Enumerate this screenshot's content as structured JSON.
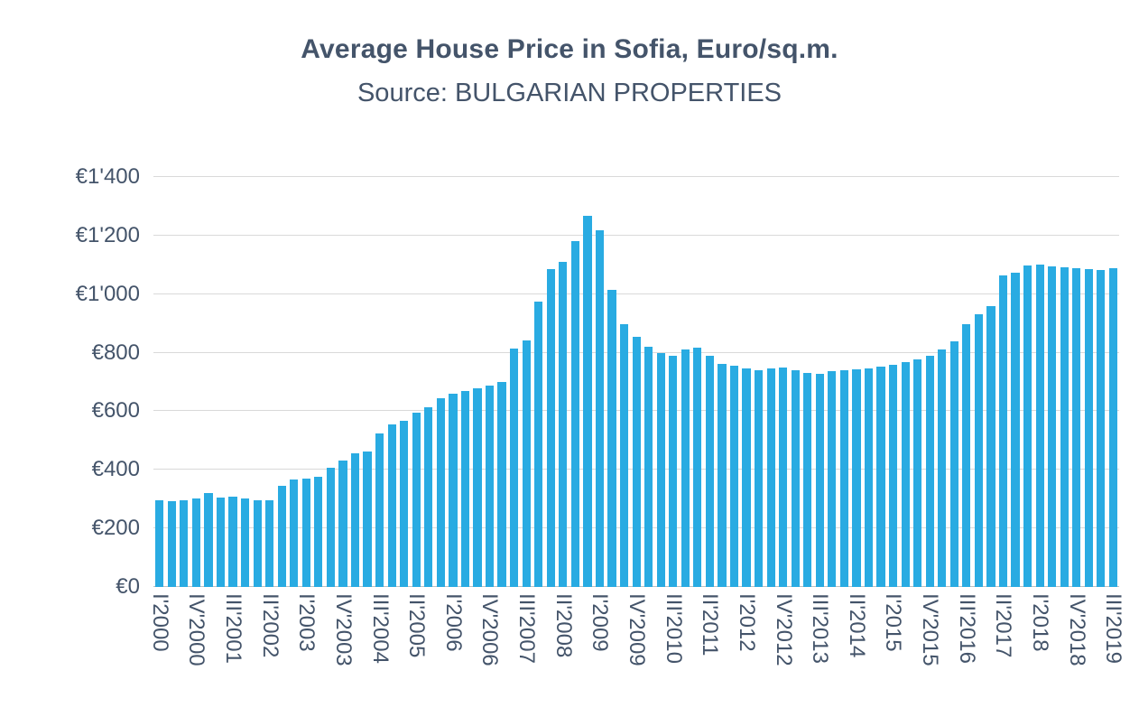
{
  "page": {
    "background": "#ffffff"
  },
  "chart_data": {
    "type": "bar",
    "title": "Average House Price in Sofia, Euro/sq.m.",
    "subtitle": "Source: BULGARIAN PROPERTIES",
    "xlabel": "",
    "ylabel": "",
    "ylim": [
      0,
      1400
    ],
    "ytick_step": 200,
    "y_tick_labels": [
      "€0",
      "€200",
      "€400",
      "€600",
      "€800",
      "€1'000",
      "€1'200",
      "€1'400"
    ],
    "x_label_every": 3,
    "grid": true,
    "legend": "none",
    "colors": {
      "bar": "#29abe2",
      "title": "#44546a",
      "axis_text": "#44546a",
      "gridline": "#d9d9d9",
      "axis_line": "#bfbfbf"
    },
    "categories": [
      "I'2000",
      "II'2000",
      "III'2000",
      "IV'2000",
      "I'2001",
      "II'2001",
      "III'2001",
      "IV'2001",
      "I'2002",
      "II'2002",
      "III'2002",
      "IV'2002",
      "I'2003",
      "II'2003",
      "III'2003",
      "IV'2003",
      "I'2004",
      "II'2004",
      "III'2004",
      "IV'2004",
      "I'2005",
      "II'2005",
      "III'2005",
      "IV'2005",
      "I'2006",
      "II'2006",
      "III'2006",
      "IV'2006",
      "I'2007",
      "II'2007",
      "III'2007",
      "IV'2007",
      "I'2008",
      "II'2008",
      "III'2008",
      "IV'2008",
      "I'2009",
      "II'2009",
      "III'2009",
      "IV'2009",
      "I'2010",
      "II'2010",
      "III'2010",
      "IV'2010",
      "I'2011",
      "II'2011",
      "III'2011",
      "IV'2011",
      "I'2012",
      "II'2012",
      "III'2012",
      "IV'2012",
      "I'2013",
      "II'2013",
      "III'2013",
      "IV'2013",
      "I'2014",
      "II'2014",
      "III'2014",
      "IV'2014",
      "I'2015",
      "II'2015",
      "III'2015",
      "IV'2015",
      "I'2016",
      "II'2016",
      "III'2016",
      "IV'2016",
      "I'2017",
      "II'2017",
      "III'2017",
      "IV'2017",
      "I'2018",
      "II'2018",
      "III'2018",
      "IV'2018",
      "I'2019",
      "II'2019",
      "III'2019"
    ],
    "values": [
      295,
      294,
      296,
      301,
      322,
      304,
      308,
      301,
      296,
      297,
      345,
      368,
      371,
      377,
      406,
      432,
      456,
      463,
      523,
      556,
      568,
      595,
      613,
      646,
      659,
      669,
      679,
      687,
      701,
      813,
      843,
      976,
      1086,
      1111,
      1181,
      1266,
      1217,
      1015,
      896,
      854,
      821,
      798,
      791,
      811,
      816,
      789,
      763,
      757,
      746,
      741,
      746,
      748,
      739,
      731,
      729,
      736,
      741,
      743,
      747,
      751,
      759,
      767,
      776,
      791,
      812,
      840,
      898,
      930,
      958,
      1063,
      1072,
      1098,
      1100,
      1096,
      1092,
      1088,
      1085,
      1083,
      1090
    ]
  }
}
